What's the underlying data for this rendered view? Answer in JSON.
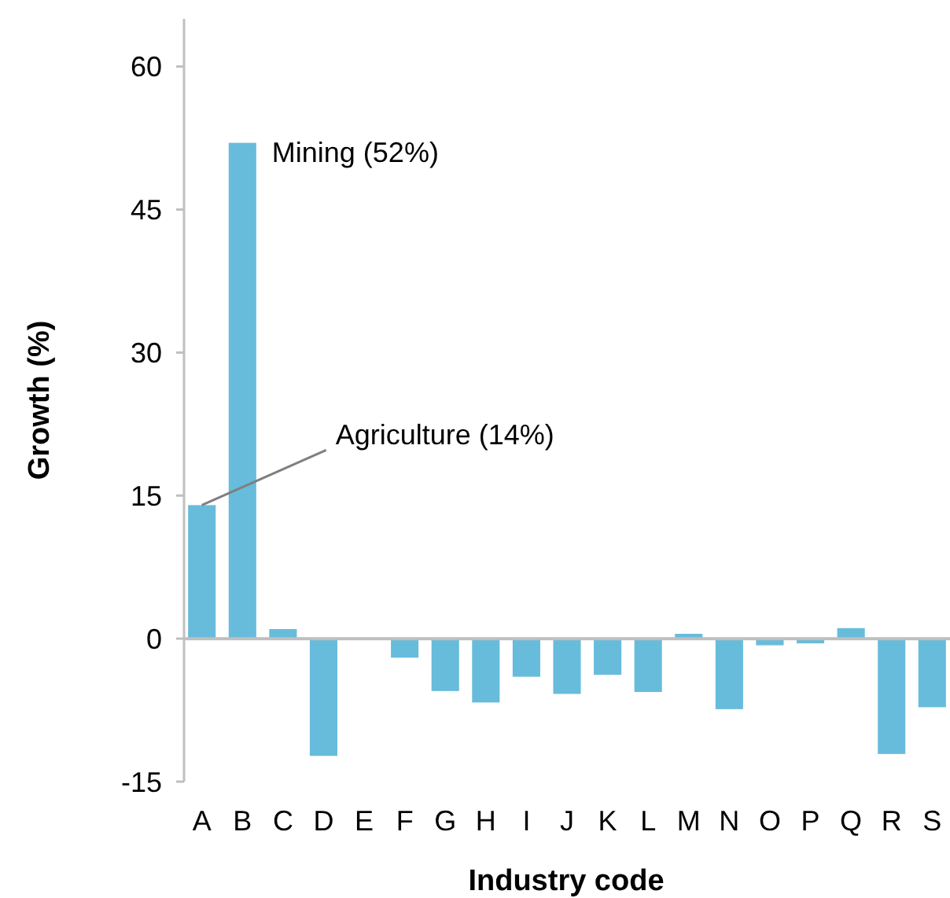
{
  "chart_data": {
    "type": "bar",
    "ylabel": "Growth (%)",
    "xlabel": "Industry code",
    "categories": [
      "A",
      "B",
      "C",
      "D",
      "E",
      "F",
      "G",
      "H",
      "I",
      "J",
      "K",
      "L",
      "M",
      "N",
      "O",
      "P",
      "Q",
      "R",
      "S"
    ],
    "values": [
      14,
      52,
      1.0,
      -12.3,
      null,
      -2.0,
      -5.5,
      -6.7,
      -4.0,
      -5.8,
      -3.8,
      -5.6,
      0.5,
      -7.4,
      -0.7,
      -0.5,
      1.1,
      -12.1,
      -7.2
    ],
    "color": "#67bcdb",
    "ylim": [
      -15,
      65
    ],
    "yticks": [
      -15,
      0,
      15,
      30,
      45,
      60
    ],
    "annotations": [
      {
        "text": "Mining (52%)",
        "x": "B",
        "y": 52
      },
      {
        "text": "Agriculture (14%)",
        "x": "A",
        "y": 14
      }
    ]
  }
}
